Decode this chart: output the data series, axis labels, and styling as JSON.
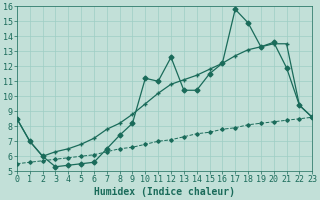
{
  "title": "",
  "xlabel": "Humidex (Indice chaleur)",
  "bg_color": "#c2e0d8",
  "line_color": "#1a6b5a",
  "grid_color": "#9ecec4",
  "xmin": 0,
  "xmax": 23,
  "ymin": 5,
  "ymax": 16,
  "series1_x": [
    0,
    1,
    2,
    3,
    4,
    5,
    6,
    7,
    8,
    9,
    10,
    11,
    12,
    13,
    14,
    15,
    16,
    17,
    18,
    19,
    20,
    21,
    22,
    23
  ],
  "series1_y": [
    8.5,
    7.0,
    6.0,
    5.3,
    5.4,
    5.5,
    5.6,
    6.5,
    7.4,
    8.2,
    11.2,
    11.0,
    12.6,
    10.4,
    10.4,
    11.5,
    12.2,
    15.8,
    14.9,
    13.3,
    13.6,
    11.9,
    9.4,
    8.6
  ],
  "series2_x": [
    0,
    1,
    2,
    3,
    4,
    5,
    6,
    7,
    8,
    9,
    10,
    11,
    12,
    13,
    14,
    15,
    16,
    17,
    18,
    19,
    20,
    21,
    22,
    23
  ],
  "series2_y": [
    8.5,
    7.0,
    6.0,
    6.3,
    6.5,
    6.8,
    7.2,
    7.8,
    8.2,
    8.8,
    9.5,
    10.2,
    10.8,
    11.1,
    11.4,
    11.8,
    12.2,
    12.7,
    13.1,
    13.3,
    13.5,
    13.5,
    9.4,
    8.6
  ],
  "series3_x": [
    0,
    1,
    2,
    3,
    4,
    5,
    6,
    7,
    8,
    9,
    10,
    11,
    12,
    13,
    14,
    15,
    16,
    17,
    18,
    19,
    20,
    21,
    22,
    23
  ],
  "series3_y": [
    5.5,
    5.6,
    5.7,
    5.8,
    5.9,
    6.0,
    6.1,
    6.3,
    6.5,
    6.6,
    6.8,
    7.0,
    7.1,
    7.3,
    7.5,
    7.6,
    7.8,
    7.9,
    8.1,
    8.2,
    8.3,
    8.4,
    8.5,
    8.6
  ],
  "tick_fontsize": 6,
  "label_fontsize": 7
}
